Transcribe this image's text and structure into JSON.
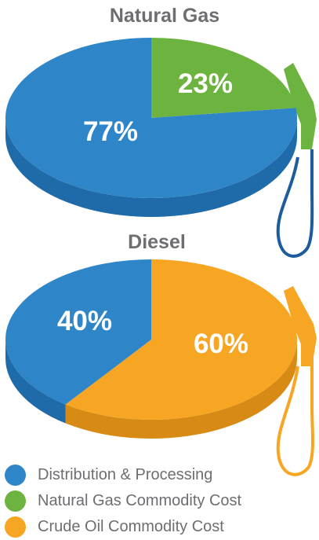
{
  "colors": {
    "distribution": "#2e86c8",
    "distribution_side": "#1f6aa8",
    "natural_gas": "#6db33f",
    "natural_gas_side": "#4f8d2a",
    "crude_oil": "#f6a623",
    "crude_oil_side": "#d88b14",
    "pump_blue": "#1d5d9b",
    "text_gray": "#6d6e71"
  },
  "chart_data": [
    {
      "type": "pie",
      "title": "Natural Gas",
      "slices": [
        {
          "label": "Natural Gas Commodity Cost",
          "value": 23,
          "display": "23%",
          "color_key": "natural_gas"
        },
        {
          "label": "Distribution & Processing",
          "value": 77,
          "display": "77%",
          "color_key": "distribution"
        }
      ],
      "pump_icon": "gas-pump-nozzle-icon",
      "style": "3d-tilted"
    },
    {
      "type": "pie",
      "title": "Diesel",
      "slices": [
        {
          "label": "Crude Oil Commodity Cost",
          "value": 60,
          "display": "60%",
          "color_key": "crude_oil"
        },
        {
          "label": "Distribution & Processing",
          "value": 40,
          "display": "40%",
          "color_key": "distribution"
        }
      ],
      "pump_icon": "fuel-pump-nozzle-icon",
      "style": "3d-tilted"
    }
  ],
  "legend": [
    {
      "label": "Distribution & Processing",
      "color_key": "distribution"
    },
    {
      "label": "Natural Gas Commodity Cost",
      "color_key": "natural_gas"
    },
    {
      "label": "Crude Oil Commodity Cost",
      "color_key": "crude_oil"
    }
  ]
}
